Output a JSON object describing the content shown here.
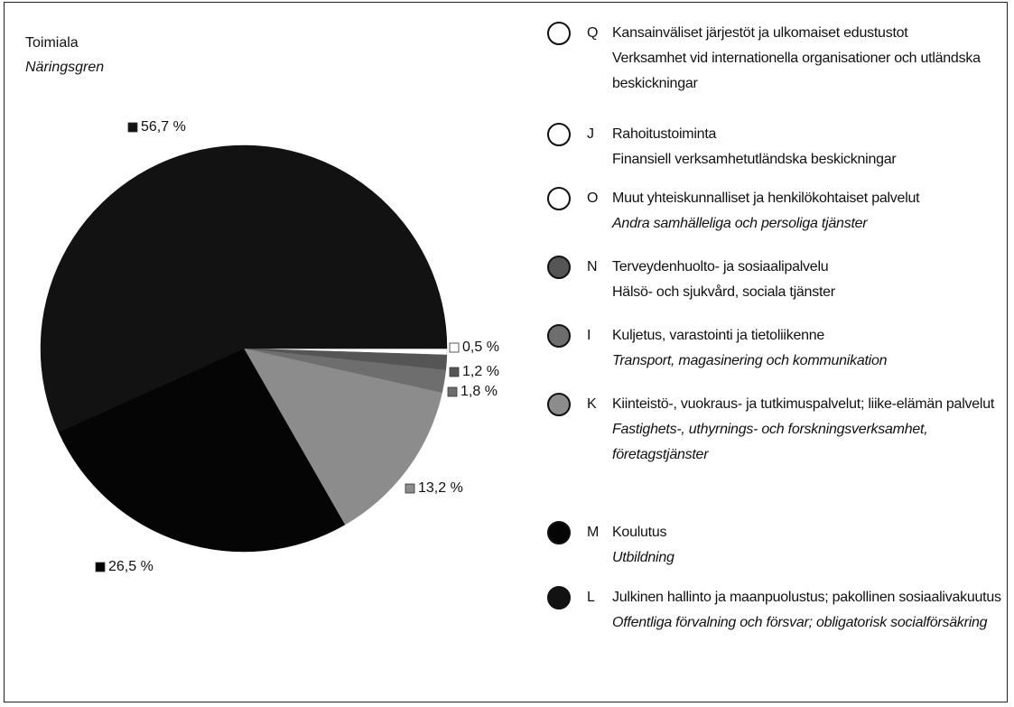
{
  "chart_data": {
    "type": "pie",
    "title": "Toimiala",
    "subtitle": "Näringsgren",
    "categories": [
      "Q",
      "J",
      "O",
      "N",
      "I",
      "K",
      "M",
      "L"
    ],
    "category_names": [
      "Kansainväliset järjestöt ja ulkomaiset edustustot",
      "Rahoitustoiminta",
      "Muut yhteiskunnalliset ja henkilökohtaiset palvelut",
      "Terveydenhuolto- ja sosiaalipalvelu",
      "Kuljetus, varastointi ja tietoliikenne",
      "Kiinteistö-, vuokraus- ja tutkimuspalvelut; liike-elämän palvelut",
      "Koulutus",
      "Julkinen hallinto ja maanpuolustus; pakollinen sosiaalivakuutus"
    ],
    "category_names_sv": [
      "Verksamhet vid internationella organisationer och utländska beskickningar",
      "Finansiell verksamhetutländska beskickningar",
      "Andra samhälleliga och persoliga tjänster",
      "Hälsö- och sjukvård, sociala tjänster",
      "Transport, magasinering och kommunikation",
      "Fastighets-, uthyrnings- och forskningsverksamhet, företagstjänster",
      "Utbildning",
      "Offentliga förvalning och försvar; obligatorisk socialförsäkring"
    ],
    "sv_italic": [
      false,
      false,
      true,
      false,
      true,
      true,
      true,
      true
    ],
    "values": [
      0,
      0,
      0.5,
      1.2,
      1.8,
      13.2,
      26.5,
      56.7
    ],
    "value_labels": [
      null,
      null,
      "0,5 %",
      "1,2 %",
      "1,8 %",
      "13,2 %",
      "26,5 %",
      "56,7 %"
    ],
    "colors": [
      "#ffffff",
      "#ffffff",
      "#ffffff",
      "#555555",
      "#6e6e6e",
      "#8c8c8c",
      "#050505",
      "#121212"
    ]
  }
}
